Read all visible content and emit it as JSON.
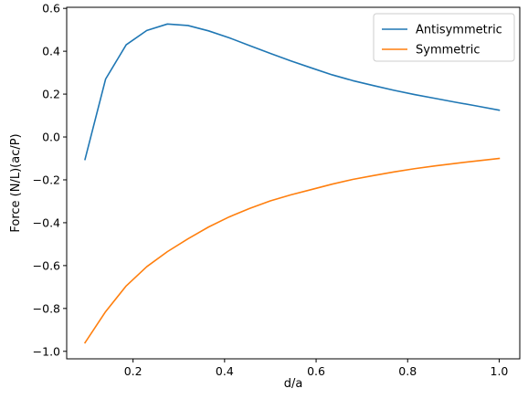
{
  "chart_data": {
    "type": "line",
    "xlabel": "d/a",
    "ylabel": "Force (N/L)(ac/P)",
    "xlim": [
      0.055,
      1.045
    ],
    "ylim": [
      -1.035,
      0.605
    ],
    "xticks": [
      0.2,
      0.4,
      0.6,
      0.8,
      1.0
    ],
    "xtick_labels": [
      "0.2",
      "0.4",
      "0.6",
      "0.8",
      "1.0"
    ],
    "yticks": [
      -1.0,
      -0.8,
      -0.6,
      -0.4,
      -0.2,
      0.0,
      0.2,
      0.4,
      0.6
    ],
    "ytick_labels": [
      "−1.0",
      "−0.8",
      "−0.6",
      "−0.4",
      "−0.2",
      "0.0",
      "0.2",
      "0.4",
      "0.6"
    ],
    "grid": false,
    "legend_position": "top-right",
    "series": [
      {
        "name": "Antisymmetric",
        "color": "#1f77b4",
        "x": [
          0.095,
          0.14,
          0.185,
          0.23,
          0.275,
          0.32,
          0.365,
          0.41,
          0.455,
          0.5,
          0.545,
          0.59,
          0.635,
          0.68,
          0.725,
          0.77,
          0.815,
          0.86,
          0.905,
          0.95,
          1.0
        ],
        "values": [
          -0.105,
          0.27,
          0.43,
          0.497,
          0.527,
          0.52,
          0.495,
          0.463,
          0.426,
          0.39,
          0.355,
          0.322,
          0.29,
          0.263,
          0.24,
          0.218,
          0.198,
          0.18,
          0.162,
          0.145,
          0.125
        ]
      },
      {
        "name": "Symmetric",
        "color": "#ff7f0e",
        "x": [
          0.095,
          0.14,
          0.185,
          0.23,
          0.275,
          0.32,
          0.365,
          0.41,
          0.455,
          0.5,
          0.545,
          0.59,
          0.635,
          0.68,
          0.725,
          0.77,
          0.815,
          0.86,
          0.905,
          0.95,
          1.0
        ],
        "values": [
          -0.96,
          -0.815,
          -0.695,
          -0.605,
          -0.535,
          -0.475,
          -0.42,
          -0.373,
          -0.333,
          -0.298,
          -0.27,
          -0.245,
          -0.22,
          -0.198,
          -0.18,
          -0.163,
          -0.148,
          -0.135,
          -0.123,
          -0.112,
          -0.1
        ]
      }
    ]
  }
}
